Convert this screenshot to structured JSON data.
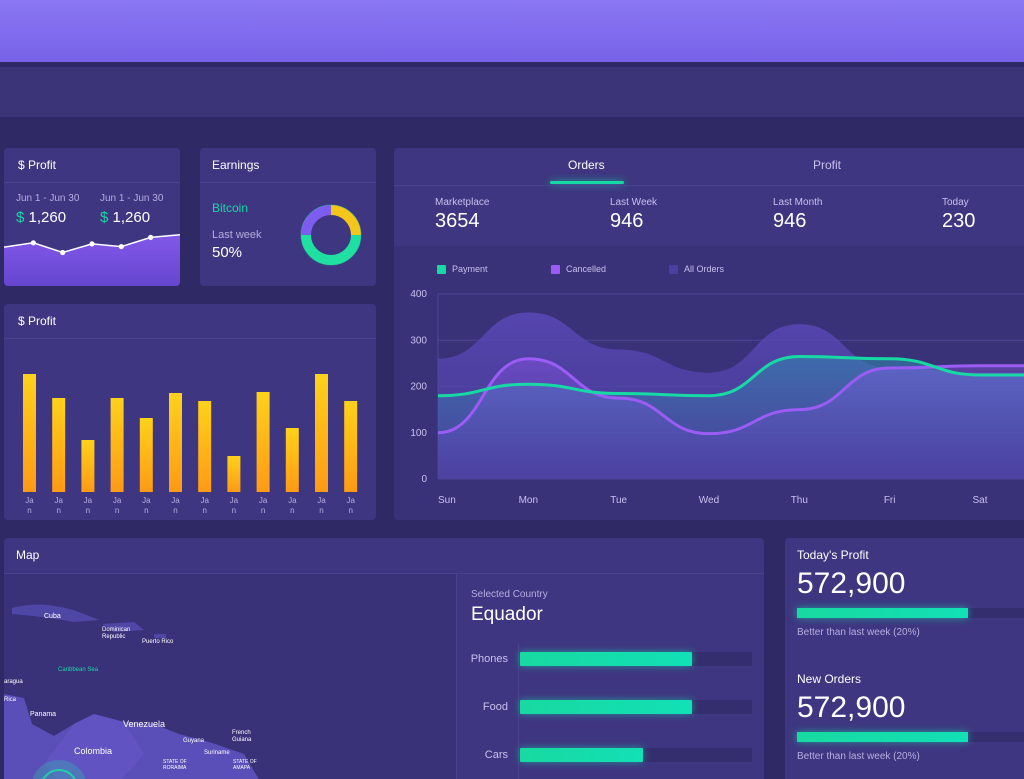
{
  "profit_small": {
    "title": "$ Profit",
    "col1": {
      "range": "Jun 1 - Jun 30",
      "currency": "$",
      "amount": "1,260"
    },
    "col2": {
      "range": "Jun 1 - Jun 30",
      "currency": "$",
      "amount": "1,260"
    },
    "sparkline": [
      0.72,
      0.8,
      0.62,
      0.78,
      0.73,
      0.9,
      0.95
    ]
  },
  "earnings": {
    "title": "Earnings",
    "coin": "Bitcoin",
    "period_label": "Last week",
    "percent": "50%",
    "donut": [
      {
        "color": "#f5c518",
        "value": 25
      },
      {
        "color": "#1fe0a0",
        "value": 50
      },
      {
        "color": "#7d5cf0",
        "value": 25
      }
    ]
  },
  "profit_bars": {
    "title": "$ Profit",
    "tick_label": "Jan"
  },
  "orders": {
    "tabs": [
      {
        "label": "Orders",
        "active": true
      },
      {
        "label": "Profit",
        "active": false
      }
    ],
    "stats": [
      {
        "label": "Marketplace",
        "value": "3654"
      },
      {
        "label": "Last Week",
        "value": "946"
      },
      {
        "label": "Last Month",
        "value": "946"
      },
      {
        "label": "Today",
        "value": "230"
      }
    ]
  },
  "chart_data": [
    {
      "type": "bar",
      "title": "$ Profit",
      "categories": [
        "Jan",
        "Jan",
        "Jan",
        "Jan",
        "Jan",
        "Jan",
        "Jan",
        "Jan",
        "Jan",
        "Jan",
        "Jan",
        "Jan"
      ],
      "values": [
        118,
        94,
        52,
        94,
        74,
        99,
        91,
        36,
        100,
        64,
        118,
        91
      ],
      "colors": {
        "bar": "#f8c416"
      }
    },
    {
      "type": "area",
      "categories": [
        "Sun",
        "Mon",
        "Tue",
        "Wed",
        "Thu",
        "Fri",
        "Sat"
      ],
      "ylim": [
        0,
        400
      ],
      "yticks": [
        0,
        100,
        200,
        300,
        400
      ],
      "legend_position": "top-left",
      "series": [
        {
          "name": "Payment",
          "color": "#17d9a3",
          "values": [
            180,
            205,
            185,
            180,
            265,
            260,
            225
          ]
        },
        {
          "name": "Cancelled",
          "color": "#9b5cf5",
          "values": [
            100,
            260,
            175,
            98,
            150,
            240,
            245
          ]
        },
        {
          "name": "All Orders",
          "color": "#4b3fa0",
          "values": [
            260,
            360,
            280,
            230,
            335,
            240,
            230
          ]
        }
      ]
    }
  ],
  "map": {
    "title": "Map",
    "labels": {
      "cuba": "Cuba",
      "dominican": "Dominican\nRepublic",
      "puerto_rico": "Puerto Rico",
      "caribbean": "Caribbean Sea",
      "nicaragua": "aragua",
      "panama": "Panama",
      "venezuela": "Venezuela",
      "colombia": "Colombia",
      "guyana": "Guyana",
      "french_guiana": "French\nGuiana",
      "suriname": "Suriname",
      "roraima": "STATE OF\nRORAIMA",
      "amapa": "STATE OF\nAMAPA",
      "rica": "Rica"
    },
    "selected_label": "Selected Country",
    "selected_country": "Equador",
    "bars": [
      {
        "label": "Phones",
        "fraction": 0.74
      },
      {
        "label": "Food",
        "fraction": 0.74
      },
      {
        "label": "Cars",
        "fraction": 0.53
      }
    ]
  },
  "today": {
    "profit_title": "Today's Profit",
    "profit_value": "572,900",
    "profit_progress": 0.72,
    "profit_note": "Better than last week (20%)",
    "orders_title": "New Orders",
    "orders_value": "572,900",
    "orders_progress": 0.72,
    "orders_note": "Better than last week (20%)"
  }
}
